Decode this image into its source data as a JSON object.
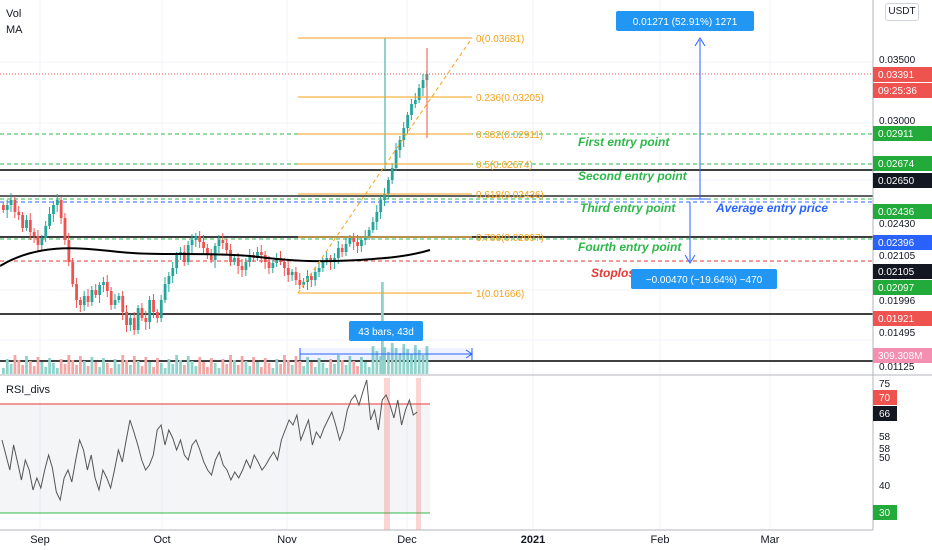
{
  "legend": {
    "vol": "Vol",
    "ma": "MA",
    "rsi": "RSI_divs"
  },
  "currency": "USDT",
  "colors": {
    "up": "#26a69a",
    "down": "#ef5350",
    "price_line": "#ef5350",
    "fib": "#f7a21b",
    "entry": "#2db84a",
    "stop": "#e53935",
    "blue": "#2962ff",
    "ma": "#000000",
    "rsi": "#555555"
  },
  "price_axis": {
    "ticks": [
      "0.03500",
      "0.03000",
      "0.02650",
      "0.02430",
      "0.02105",
      "0.01996",
      "0.01495",
      "0.01125"
    ],
    "tags": [
      {
        "text": "0.03391",
        "kind": "red"
      },
      {
        "text": "09:25:36",
        "kind": "red"
      },
      {
        "text": "0.02911",
        "kind": "green"
      },
      {
        "text": "0.02674",
        "kind": "green"
      },
      {
        "text": "0.02650",
        "kind": "dark"
      },
      {
        "text": "0.02436",
        "kind": "green"
      },
      {
        "text": "0.02396",
        "kind": "blue"
      },
      {
        "text": "0.02105",
        "kind": "dark"
      },
      {
        "text": "0.02097",
        "kind": "green"
      },
      {
        "text": "0.01921",
        "kind": "red"
      },
      {
        "text": "309.308M",
        "kind": "pink"
      }
    ]
  },
  "rsi_axis": {
    "ticks": [
      "75",
      "58",
      "58",
      "50",
      "40"
    ],
    "tags": [
      {
        "text": "70",
        "kind": "red"
      },
      {
        "text": "66",
        "kind": "dark"
      },
      {
        "text": "30",
        "kind": "green"
      }
    ]
  },
  "time_axis": [
    "Sep",
    "Oct",
    "Nov",
    "Dec",
    "2021",
    "Feb",
    "Mar"
  ],
  "fib_levels": [
    {
      "ratio": 0,
      "label": "0(0.03681)",
      "price": 0.03681
    },
    {
      "ratio": 0.236,
      "label": "0.236(0.03205)",
      "price": 0.03205
    },
    {
      "ratio": 0.382,
      "label": "0.382(0.02911)",
      "price": 0.02911
    },
    {
      "ratio": 0.5,
      "label": "0.5(0.02674)",
      "price": 0.02674
    },
    {
      "ratio": 0.618,
      "label": "0.618(0.02436)",
      "price": 0.02436
    },
    {
      "ratio": 0.786,
      "label": "0.786(0.02097)",
      "price": 0.02097
    },
    {
      "ratio": 1,
      "label": "1(0.01666)",
      "price": 0.01666
    }
  ],
  "annotations": {
    "first_entry": "First entry point",
    "second_entry": "Second entry point",
    "third_entry": "Third entry point",
    "fourth_entry": "Fourth entry point",
    "average_entry": "Average entry price",
    "stoploss": "Stoploss",
    "range_up": "0.01271 (52.91%) 1271",
    "range_down": "−0.00470 (−19.64%) −470",
    "bars_range": "43 bars, 43d"
  },
  "rsi_levels": {
    "upper": 70,
    "lower": 30,
    "current": 66
  },
  "chart_data": {
    "type": "candlestick",
    "symbol_currency": "USDT",
    "series": [
      {
        "name": "Vol",
        "type": "bar"
      },
      {
        "name": "MA",
        "type": "line"
      },
      {
        "name": "RSI_divs",
        "type": "line"
      }
    ],
    "last_price": 0.03391,
    "countdown": "09:25:36",
    "last_volume": "309.308M",
    "rsi_last": 66,
    "x_labels": [
      "Sep",
      "Oct",
      "Nov",
      "Dec",
      "2021",
      "Feb",
      "Mar"
    ]
  }
}
